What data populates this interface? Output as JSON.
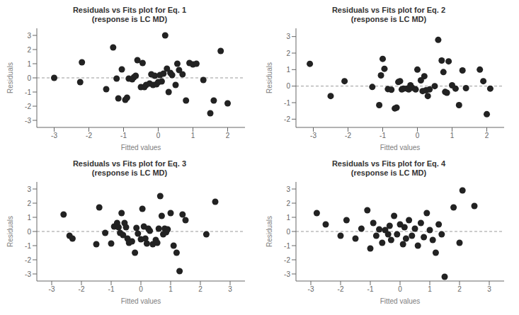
{
  "chart_data": [
    {
      "type": "scatter",
      "title": "Residuals vs Fits plot for Eq. 1\n(response is LC MD)",
      "xlabel": "Fitted values",
      "ylabel": "Residuals",
      "xlim": [
        -3.5,
        2.5
      ],
      "ylim": [
        -3.5,
        3.5
      ],
      "xticks": [
        -3,
        -2,
        -1,
        0,
        1,
        2
      ],
      "yticks": [
        -3,
        -2,
        -1,
        0,
        1,
        2,
        3
      ],
      "x": [
        -3.0,
        -2.2,
        -2.25,
        -1.5,
        -1.3,
        -1.2,
        -1.15,
        -1.05,
        -0.95,
        -0.9,
        -0.85,
        -0.75,
        -0.7,
        -0.65,
        -0.6,
        -0.5,
        -0.45,
        -0.4,
        -0.35,
        -0.25,
        -0.2,
        -0.15,
        -0.1,
        -0.05,
        0.0,
        0.05,
        0.1,
        0.15,
        0.2,
        0.25,
        0.3,
        0.35,
        0.4,
        0.5,
        0.55,
        0.6,
        0.7,
        0.8,
        0.9,
        1.0,
        1.1,
        1.3,
        1.5,
        1.6,
        1.8,
        2.0
      ],
      "values": [
        0.0,
        1.1,
        -0.3,
        -0.8,
        2.15,
        -0.05,
        -1.45,
        0.6,
        -1.55,
        -1.4,
        -0.05,
        -0.1,
        0.05,
        0.15,
        1.25,
        -0.65,
        1.05,
        -0.65,
        -0.5,
        -0.4,
        0.25,
        -0.5,
        0.15,
        -0.45,
        -0.3,
        0.2,
        -0.25,
        0.3,
        3.0,
        0.65,
        -1.0,
        0.35,
        0.2,
        -0.5,
        1.0,
        0.55,
        0.25,
        -1.6,
        1.05,
        0.95,
        1.0,
        -0.15,
        -2.5,
        -1.6,
        1.9,
        -1.8
      ],
      "color": "#222222",
      "grid": false,
      "reference_line": {
        "y": 0,
        "color": "#999999",
        "line_style": "dashed"
      }
    },
    {
      "type": "scatter",
      "title": "Residuals vs Fits plot for Eq. 2\n(response is LC MD)",
      "xlabel": "Fitted values",
      "ylabel": "Residuals",
      "xlim": [
        -3.5,
        2.5
      ],
      "ylim": [
        -2.5,
        3.5
      ],
      "xticks": [
        -3,
        -2,
        -1,
        0,
        1,
        2
      ],
      "yticks": [
        -2,
        -1,
        0,
        1,
        2,
        3
      ],
      "x": [
        -3.1,
        -2.5,
        -2.1,
        -1.3,
        -1.1,
        -1.05,
        -1.0,
        -0.95,
        -0.85,
        -0.75,
        -0.65,
        -0.6,
        -0.55,
        -0.5,
        -0.45,
        -0.4,
        -0.3,
        -0.25,
        -0.2,
        -0.15,
        -0.05,
        0.0,
        0.1,
        0.15,
        0.2,
        0.25,
        0.3,
        0.35,
        0.5,
        0.6,
        0.7,
        0.75,
        0.8,
        0.85,
        0.9,
        1.0,
        1.1,
        1.2,
        1.3,
        1.4,
        1.8,
        1.9,
        2.0,
        2.1
      ],
      "values": [
        1.35,
        -0.6,
        0.3,
        -0.05,
        -1.15,
        0.65,
        1.65,
        1.05,
        -0.18,
        -0.22,
        -1.35,
        -1.3,
        0.25,
        0.3,
        -0.2,
        -0.15,
        -0.15,
        -0.2,
        0.05,
        -0.1,
        -0.2,
        1.0,
        0.35,
        -0.3,
        0.6,
        -0.25,
        -0.6,
        -0.2,
        0.0,
        2.8,
        1.55,
        0.85,
        -0.35,
        -0.4,
        1.5,
        0.05,
        -0.15,
        -1.15,
        0.95,
        -0.12,
        1.0,
        0.3,
        -1.7,
        -0.15
      ],
      "color": "#222222",
      "grid": false,
      "reference_line": {
        "y": 0,
        "color": "#999999",
        "line_style": "dashed"
      }
    },
    {
      "type": "scatter",
      "title": "Residuals vs Fits plot for Eq. 3\n(response is LC MD)",
      "xlabel": "Fitted values",
      "ylabel": "Residuals",
      "xlim": [
        -3.5,
        3.5
      ],
      "ylim": [
        -3.5,
        3.5
      ],
      "xticks": [
        -3,
        -2,
        -1,
        0,
        1,
        2,
        3
      ],
      "yticks": [
        -3,
        -2,
        -1,
        0,
        1,
        2,
        3
      ],
      "x": [
        -2.6,
        -2.4,
        -2.3,
        -1.5,
        -1.4,
        -1.2,
        -1.0,
        -0.9,
        -0.8,
        -0.75,
        -0.7,
        -0.65,
        -0.6,
        -0.55,
        -0.5,
        -0.45,
        -0.4,
        -0.3,
        -0.2,
        -0.15,
        -0.1,
        0.0,
        0.05,
        0.1,
        0.15,
        0.2,
        0.25,
        0.3,
        0.4,
        0.5,
        0.55,
        0.6,
        0.65,
        0.7,
        0.75,
        0.8,
        0.85,
        0.9,
        1.0,
        1.1,
        1.2,
        1.3,
        1.4,
        1.5,
        2.2,
        2.5
      ],
      "values": [
        1.2,
        -0.3,
        -0.5,
        -0.9,
        1.7,
        -0.1,
        -0.85,
        0.35,
        0.6,
        0.3,
        -0.1,
        1.3,
        -0.25,
        0.6,
        0.3,
        -0.5,
        -0.8,
        -0.7,
        -1.5,
        0.25,
        -0.15,
        -0.55,
        1.6,
        0.35,
        -0.5,
        -0.85,
        0.2,
        0.05,
        -0.9,
        -0.6,
        -0.8,
        0.2,
        2.5,
        1.1,
        -0.2,
        0.2,
        -0.05,
        0.15,
        1.3,
        -1.0,
        -1.5,
        -2.8,
        1.2,
        0.8,
        -0.2,
        2.1
      ],
      "color": "#222222",
      "grid": false,
      "reference_line": {
        "y": 0,
        "color": "#999999",
        "line_style": "dashed"
      }
    },
    {
      "type": "scatter",
      "title": "Residuals vs Fits plot for Eq. 4\n(response is LC MD)",
      "xlabel": "Fitted values",
      "ylabel": "Residuals",
      "xlim": [
        -3.5,
        3.5
      ],
      "ylim": [
        -3.5,
        3.5
      ],
      "xticks": [
        -3,
        -2,
        -1,
        0,
        1,
        2,
        3
      ],
      "yticks": [
        -3,
        -2,
        -1,
        0,
        1,
        2,
        3
      ],
      "x": [
        -2.8,
        -2.5,
        -2.0,
        -1.8,
        -1.5,
        -1.3,
        -1.1,
        -1.0,
        -0.9,
        -0.8,
        -0.7,
        -0.6,
        -0.5,
        -0.4,
        -0.35,
        -0.3,
        -0.2,
        -0.1,
        0.0,
        0.1,
        0.15,
        0.2,
        0.3,
        0.4,
        0.5,
        0.6,
        0.7,
        0.8,
        0.9,
        1.0,
        1.1,
        1.2,
        1.3,
        1.4,
        1.5,
        1.8,
        2.0,
        2.1,
        2.5
      ],
      "values": [
        1.3,
        0.5,
        -0.3,
        0.8,
        -0.5,
        0.2,
        1.5,
        -1.2,
        0.6,
        -0.3,
        0.15,
        -0.8,
        0.1,
        -0.2,
        0.4,
        -0.6,
        1.1,
        -0.2,
        0.5,
        -0.9,
        0.3,
        -0.5,
        0.8,
        -0.3,
        0.2,
        -1.0,
        0.6,
        -0.4,
        1.3,
        0.1,
        -0.6,
        -1.5,
        0.5,
        -0.2,
        -3.2,
        1.7,
        -0.8,
        2.9,
        1.8
      ],
      "color": "#222222",
      "grid": false,
      "reference_line": {
        "y": 0,
        "color": "#999999",
        "line_style": "dashed"
      }
    }
  ]
}
